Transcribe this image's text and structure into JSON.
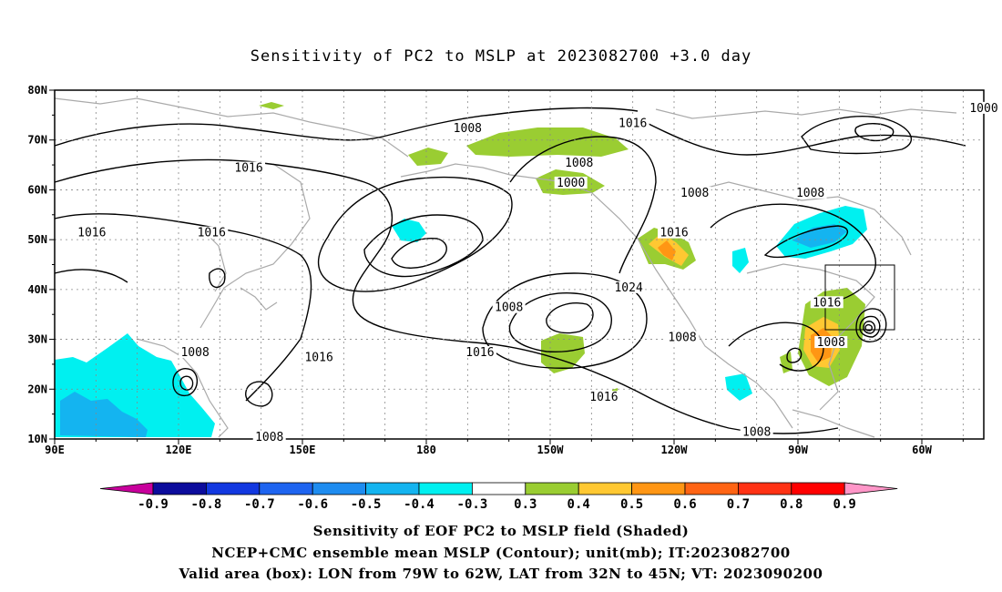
{
  "title": "Sensitivity of PC2 to MSLP at 2023082700 +3.0 day",
  "map": {
    "lon_ticks": [
      "90E",
      "120E",
      "150E",
      "180",
      "150W",
      "120W",
      "90W",
      "60W"
    ],
    "lat_ticks": [
      "80N",
      "70N",
      "60N",
      "50N",
      "40N",
      "30N",
      "20N",
      "10N"
    ],
    "contour_labels": [
      {
        "text": "1008",
        "lon": -170,
        "lat": 72
      },
      {
        "text": "1016",
        "lon": -130,
        "lat": 73
      },
      {
        "text": "1000",
        "lon": -45,
        "lat": 76
      },
      {
        "text": "1016",
        "lon": 137,
        "lat": 64
      },
      {
        "text": "1008",
        "lon": -143,
        "lat": 65
      },
      {
        "text": "1000",
        "lon": -145,
        "lat": 61
      },
      {
        "text": "1008",
        "lon": -115,
        "lat": 59
      },
      {
        "text": "1008",
        "lon": -87,
        "lat": 59
      },
      {
        "text": "1016",
        "lon": 99,
        "lat": 51
      },
      {
        "text": "1016",
        "lon": 128,
        "lat": 51
      },
      {
        "text": "1016",
        "lon": -120,
        "lat": 51
      },
      {
        "text": "1024",
        "lon": -131,
        "lat": 40
      },
      {
        "text": "1016",
        "lon": -83,
        "lat": 37
      },
      {
        "text": "1008",
        "lon": -160,
        "lat": 36
      },
      {
        "text": "1008",
        "lon": -118,
        "lat": 30
      },
      {
        "text": "1008",
        "lon": -82,
        "lat": 29
      },
      {
        "text": "1008",
        "lon": 124,
        "lat": 27
      },
      {
        "text": "1016",
        "lon": 154,
        "lat": 26
      },
      {
        "text": "1016",
        "lon": -167,
        "lat": 27
      },
      {
        "text": "1016",
        "lon": -137,
        "lat": 18
      },
      {
        "text": "1008",
        "lon": -100,
        "lat": 11
      },
      {
        "text": "1008",
        "lon": 142,
        "lat": 10
      }
    ]
  },
  "colorbar": {
    "labels": [
      "-0.9",
      "-0.8",
      "-0.7",
      "-0.6",
      "-0.5",
      "-0.4",
      "-0.3",
      "0.3",
      "0.4",
      "0.5",
      "0.6",
      "0.7",
      "0.8",
      "0.9"
    ],
    "colors": [
      "#0c0c9c",
      "#1238e0",
      "#1e64f0",
      "#1e8cf0",
      "#14b4f0",
      "#00f0f0",
      "#ffffff",
      "#9acd32",
      "#ffc832",
      "#ff9614",
      "#ff6414",
      "#ff3214",
      "#ff0000"
    ],
    "low_end_color": "#c8009c",
    "high_end_color": "#ff96c8"
  },
  "footer": {
    "line1": "Sensitivity of EOF PC2 to MSLP field (Shaded)",
    "line2": "NCEP+CMC ensemble mean MSLP (Contour); unit(mb); IT:2023082700",
    "line3": "Valid area (box): LON from 79W to 62W, LAT from 32N to 45N; VT: 2023090200"
  }
}
